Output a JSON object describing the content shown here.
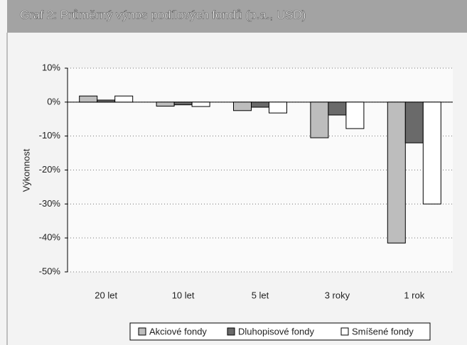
{
  "chart_data": {
    "type": "bar",
    "title": "Graf 2: Průměrný výnos podílových fondů (p.a., USD)",
    "y_label": "Výkonnost",
    "categories": [
      "20 let",
      "10 let",
      "5 let",
      "3 roky",
      "1 rok"
    ],
    "series": [
      {
        "name": "Akciové fondy",
        "color": "#bdbdbd",
        "values": [
          1.8,
          -1.2,
          -2.5,
          -10.5,
          -41.5
        ]
      },
      {
        "name": "Dluhopisové fondy",
        "color": "#6a6a6a",
        "values": [
          0.6,
          -0.8,
          -1.5,
          -3.8,
          -12
        ]
      },
      {
        "name": "Smíšené fondy",
        "color": "#ffffff",
        "values": [
          1.8,
          -1.3,
          -3.2,
          -7.8,
          -30
        ]
      }
    ],
    "ylim": [
      -50,
      10
    ],
    "yticks": [
      {
        "value": 10,
        "label": "10%"
      },
      {
        "value": 0,
        "label": "0%"
      },
      {
        "value": -10,
        "label": "-10%"
      },
      {
        "value": -20,
        "label": "-20%"
      },
      {
        "value": -30,
        "label": "-30%"
      },
      {
        "value": -40,
        "label": "-40%"
      },
      {
        "value": -50,
        "label": "-50%"
      }
    ],
    "grid": true
  }
}
